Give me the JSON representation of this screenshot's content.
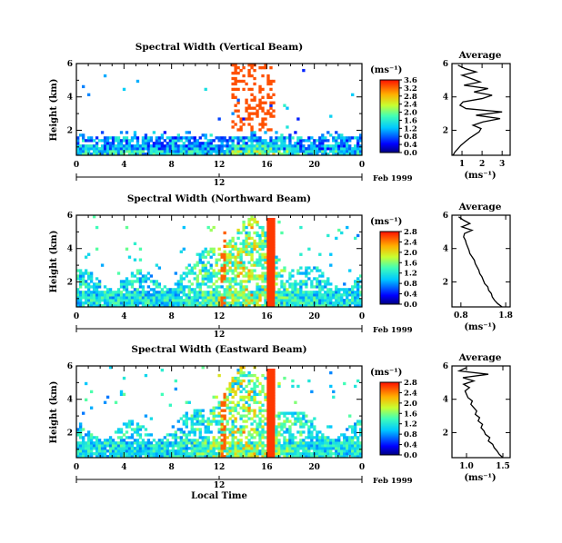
{
  "chart_data": [
    {
      "type": "heatmap",
      "title": "Spectral Width (Vertical Beam)",
      "ylabel": "Height (km)",
      "x_ticks": [
        "0",
        "4",
        "8",
        "12",
        "16",
        "20",
        "0"
      ],
      "y_ticks": [
        "2",
        "4",
        "6"
      ],
      "xlim": [
        0,
        24
      ],
      "ylim": [
        0.5,
        6.0
      ],
      "date_mid": "12",
      "date_label": "Feb 1999",
      "colorbar": {
        "unit": "(ms⁻¹)",
        "ticks": [
          "0.0",
          "0.4",
          "0.8",
          "1.2",
          "1.6",
          "2.0",
          "2.4",
          "2.8",
          "3.2",
          "3.6"
        ],
        "range": [
          0.0,
          3.6
        ]
      },
      "average": {
        "title": "Average",
        "xlabel": "(ms⁻¹)",
        "x_ticks": [
          "1",
          "2",
          "3"
        ],
        "y_ticks": [
          "2",
          "4",
          "6"
        ],
        "xlim": [
          0.5,
          3.4
        ],
        "ylim": [
          0.5,
          6.0
        ],
        "height": [
          0.5,
          0.7,
          0.9,
          1.1,
          1.3,
          1.5,
          1.7,
          1.9,
          2.1,
          2.3,
          2.5,
          2.7,
          2.9,
          3.1,
          3.3,
          3.5,
          3.7,
          3.9,
          4.1,
          4.3,
          4.5,
          4.7,
          4.9,
          5.1,
          5.3,
          5.5,
          5.7,
          5.9
        ],
        "value": [
          0.55,
          0.65,
          0.8,
          0.95,
          1.15,
          1.35,
          1.6,
          1.85,
          1.95,
          1.55,
          2.05,
          2.9,
          1.7,
          3.0,
          1.2,
          0.9,
          1.05,
          2.0,
          2.5,
          1.6,
          2.3,
          1.1,
          1.9,
          1.45,
          1.0,
          1.7,
          1.15,
          0.8
        ]
      }
    },
    {
      "type": "heatmap",
      "title": "Spectral Width (Northward Beam)",
      "ylabel": "Height (km)",
      "x_ticks": [
        "0",
        "4",
        "8",
        "12",
        "16",
        "20",
        "0"
      ],
      "y_ticks": [
        "2",
        "4",
        "6"
      ],
      "xlim": [
        0,
        24
      ],
      "ylim": [
        0.5,
        6.0
      ],
      "date_mid": "12",
      "date_label": "Feb 1999",
      "colorbar": {
        "unit": "(ms⁻¹)",
        "ticks": [
          "0.0",
          "0.4",
          "0.8",
          "1.2",
          "1.6",
          "2.0",
          "2.4",
          "2.8"
        ],
        "range": [
          0.0,
          2.8
        ]
      },
      "average": {
        "title": "Average",
        "xlabel": "(ms⁻¹)",
        "x_ticks": [
          "0.8",
          "1.8"
        ],
        "y_ticks": [
          "2",
          "4",
          "6"
        ],
        "xlim": [
          0.6,
          1.9
        ],
        "ylim": [
          0.5,
          6.0
        ],
        "height": [
          0.5,
          0.7,
          0.9,
          1.1,
          1.3,
          1.5,
          1.7,
          1.9,
          2.1,
          2.3,
          2.5,
          2.7,
          2.9,
          3.1,
          3.3,
          3.5,
          3.7,
          3.9,
          4.1,
          4.3,
          4.5,
          4.7,
          4.9,
          5.1,
          5.3,
          5.5,
          5.7,
          5.9
        ],
        "value": [
          1.72,
          1.62,
          1.55,
          1.5,
          1.48,
          1.42,
          1.4,
          1.33,
          1.3,
          1.27,
          1.22,
          1.2,
          1.16,
          1.12,
          1.1,
          1.05,
          1.0,
          0.98,
          0.95,
          0.92,
          0.9,
          0.86,
          0.88,
          1.05,
          0.82,
          1.0,
          0.86,
          0.75
        ]
      }
    },
    {
      "type": "heatmap",
      "title": "Spectral Width (Eastward Beam)",
      "ylabel": "Height (km)",
      "x_ticks": [
        "0",
        "4",
        "8",
        "12",
        "16",
        "20",
        "0"
      ],
      "y_ticks": [
        "2",
        "4",
        "6"
      ],
      "xlim": [
        0,
        24
      ],
      "ylim": [
        0.5,
        6.0
      ],
      "date_mid": "12",
      "date_label": "Feb 1999",
      "colorbar": {
        "unit": "(ms⁻¹)",
        "ticks": [
          "0.0",
          "0.4",
          "0.8",
          "1.2",
          "1.6",
          "2.0",
          "2.4",
          "2.8"
        ],
        "range": [
          0.0,
          2.8
        ]
      },
      "average": {
        "title": "Average",
        "xlabel": "(ms⁻¹)",
        "x_ticks": [
          "1.0",
          "1.5"
        ],
        "y_ticks": [
          "2",
          "4",
          "6"
        ],
        "xlim": [
          0.8,
          1.6
        ],
        "ylim": [
          0.5,
          6.0
        ],
        "height": [
          0.5,
          0.7,
          0.9,
          1.1,
          1.3,
          1.5,
          1.7,
          1.9,
          2.1,
          2.3,
          2.5,
          2.7,
          2.9,
          3.1,
          3.3,
          3.5,
          3.7,
          3.9,
          4.1,
          4.3,
          4.5,
          4.7,
          4.9,
          5.1,
          5.3,
          5.5,
          5.7,
          5.9
        ],
        "value": [
          1.5,
          1.45,
          1.42,
          1.38,
          1.36,
          1.3,
          1.32,
          1.26,
          1.24,
          1.2,
          1.22,
          1.16,
          1.18,
          1.12,
          1.14,
          1.1,
          1.06,
          1.08,
          1.02,
          1.0,
          0.98,
          1.04,
          0.96,
          1.1,
          0.95,
          1.3,
          0.9,
          1.0
        ]
      }
    }
  ],
  "xlabel": "Local Time"
}
